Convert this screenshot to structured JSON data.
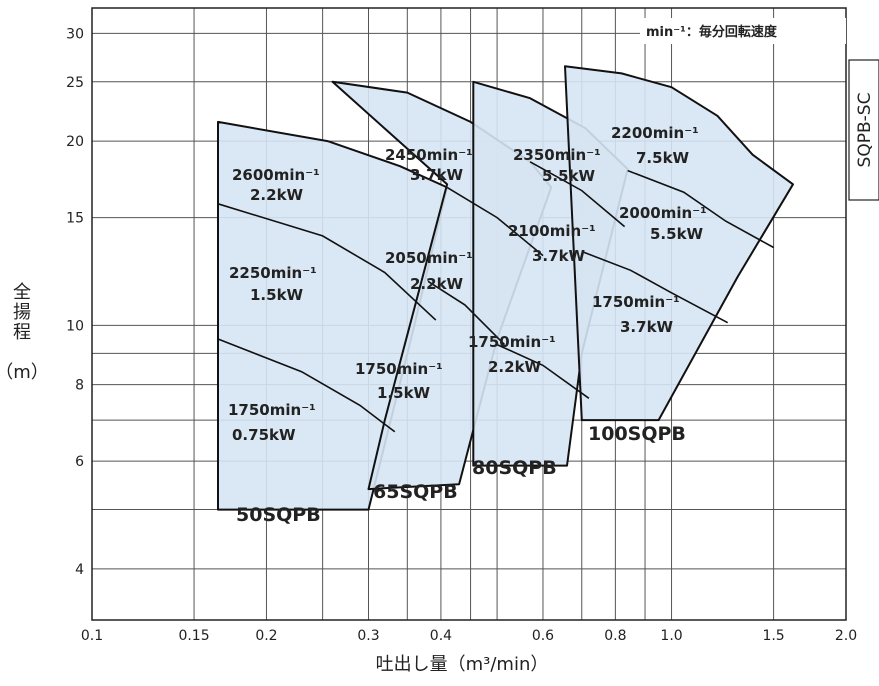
{
  "chart_data": {
    "type": "area",
    "title": "",
    "xlabel": "吐出し量（m³/min）",
    "ylabel": [
      "全",
      "揚",
      "程",
      "（m）"
    ],
    "unit_note": "min⁻¹：毎分回転速度",
    "side_tag": "SQPB-SC",
    "x_scale": "log",
    "y_scale": "log",
    "xlim": [
      0.1,
      2.0
    ],
    "ylim": [
      3.3,
      33
    ],
    "grid": true,
    "x_ticks": [
      {
        "v": 0.1,
        "label": "0.1"
      },
      {
        "v": 0.15,
        "label": "0.15"
      },
      {
        "v": 0.2,
        "label": "0.2"
      },
      {
        "v": 0.3,
        "label": "0.3"
      },
      {
        "v": 0.4,
        "label": "0.4"
      },
      {
        "v": 0.6,
        "label": "0.6"
      },
      {
        "v": 0.8,
        "label": "0.8"
      },
      {
        "v": 1.0,
        "label": "1.0"
      },
      {
        "v": 1.5,
        "label": "1.5"
      },
      {
        "v": 2.0,
        "label": "2.0"
      }
    ],
    "x_grid": [
      0.15,
      0.2,
      0.25,
      0.3,
      0.35,
      0.4,
      0.45,
      0.5,
      0.6,
      0.7,
      0.8,
      0.9,
      1.0,
      1.5
    ],
    "y_ticks": [
      {
        "v": 4,
        "label": "4"
      },
      {
        "v": 6,
        "label": "6"
      },
      {
        "v": 8,
        "label": "8"
      },
      {
        "v": 10,
        "label": "10"
      },
      {
        "v": 15,
        "label": "15"
      },
      {
        "v": 20,
        "label": "20"
      },
      {
        "v": 25,
        "label": "25"
      },
      {
        "v": 30,
        "label": "30"
      }
    ],
    "y_grid": [
      4,
      5,
      6,
      7,
      8,
      9,
      10,
      15,
      20,
      25,
      30
    ],
    "fill_color": "#d6e4f3",
    "series": [
      {
        "model": "50SQPB",
        "outline": [
          [
            0.165,
            5.0
          ],
          [
            0.165,
            21.5
          ],
          [
            0.255,
            20.0
          ],
          [
            0.34,
            18.2
          ],
          [
            0.41,
            16.8
          ],
          [
            0.36,
            10.0
          ],
          [
            0.3,
            5.0
          ]
        ],
        "speed_curves": [
          [
            [
              0.165,
              15.8
            ],
            [
              0.25,
              14.0
            ],
            [
              0.32,
              12.2
            ],
            [
              0.392,
              10.2
            ]
          ],
          [
            [
              0.165,
              9.5
            ],
            [
              0.23,
              8.4
            ],
            [
              0.29,
              7.4
            ],
            [
              0.333,
              6.7
            ]
          ]
        ],
        "labels": [
          {
            "rpm": "2600min⁻¹",
            "kw": "2.2kW"
          },
          {
            "rpm": "2250min⁻¹",
            "kw": "1.5kW"
          },
          {
            "rpm": "1750min⁻¹",
            "kw": "0.75kW"
          }
        ]
      },
      {
        "model": "65SQPB",
        "outline": [
          [
            0.3,
            5.4
          ],
          [
            0.32,
            7.0
          ],
          [
            0.41,
            17.0
          ],
          [
            0.26,
            25.0
          ],
          [
            0.35,
            24.0
          ],
          [
            0.45,
            21.5
          ],
          [
            0.57,
            18.5
          ],
          [
            0.62,
            16.8
          ],
          [
            0.5,
            9.5
          ],
          [
            0.43,
            5.5
          ]
        ],
        "speed_curves": [
          [
            [
              0.41,
              16.8
            ],
            [
              0.5,
              15.0
            ],
            [
              0.6,
              13.0
            ]
          ],
          [
            [
              0.38,
              11.8
            ],
            [
              0.44,
              10.8
            ],
            [
              0.515,
              9.3
            ]
          ]
        ],
        "labels": [
          {
            "rpm": "2450min⁻¹",
            "kw": "3.7kW"
          },
          {
            "rpm": "2050min⁻¹",
            "kw": "2.2kW"
          },
          {
            "rpm": "1750min⁻¹",
            "kw": "1.5kW"
          }
        ]
      },
      {
        "model": "80SQPB",
        "outline": [
          [
            0.455,
            5.9
          ],
          [
            0.455,
            25.0
          ],
          [
            0.57,
            23.5
          ],
          [
            0.71,
            21.0
          ],
          [
            0.84,
            18.0
          ],
          [
            0.7,
            9.0
          ],
          [
            0.66,
            5.9
          ]
        ],
        "speed_curves": [
          [
            [
              0.57,
              18.5
            ],
            [
              0.7,
              16.6
            ],
            [
              0.83,
              14.5
            ]
          ],
          [
            [
              0.5,
              9.3
            ],
            [
              0.6,
              8.6
            ],
            [
              0.72,
              7.6
            ]
          ]
        ],
        "labels": [
          {
            "rpm": "2350min⁻¹",
            "kw": "5.5kW"
          },
          {
            "rpm": "2100min⁻¹",
            "kw": "3.7kW"
          },
          {
            "rpm": "1750min⁻¹",
            "kw": "2.2kW"
          }
        ]
      },
      {
        "model": "100SQPB",
        "outline": [
          [
            0.7,
            7.0
          ],
          [
            0.655,
            26.5
          ],
          [
            0.82,
            25.8
          ],
          [
            1.0,
            24.5
          ],
          [
            1.2,
            22.0
          ],
          [
            1.38,
            19.0
          ],
          [
            1.62,
            17.0
          ],
          [
            1.3,
            12.0
          ],
          [
            0.95,
            7.0
          ]
        ],
        "speed_curves": [
          [
            [
              0.84,
              17.9
            ],
            [
              1.05,
              16.5
            ],
            [
              1.24,
              14.8
            ],
            [
              1.5,
              13.4
            ]
          ],
          [
            [
              0.7,
              13.2
            ],
            [
              0.85,
              12.3
            ],
            [
              1.0,
              11.3
            ],
            [
              1.25,
              10.1
            ]
          ]
        ],
        "labels": [
          {
            "rpm": "2200min⁻¹",
            "kw": "7.5kW"
          },
          {
            "rpm": "2000min⁻¹",
            "kw": "5.5kW"
          },
          {
            "rpm": "1750min⁻¹",
            "kw": "3.7kW"
          }
        ]
      }
    ]
  }
}
